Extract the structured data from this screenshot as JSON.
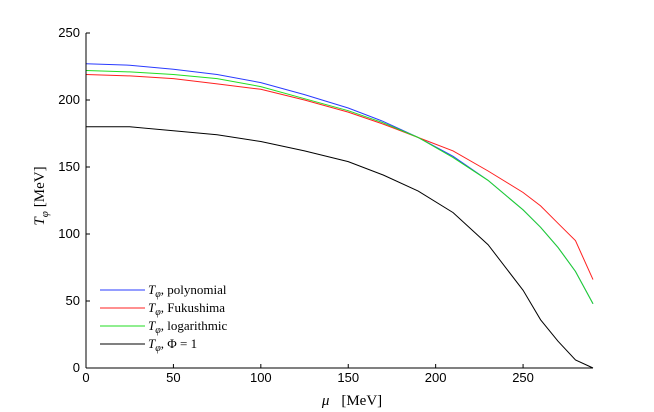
{
  "chart_data": {
    "type": "line",
    "title": "",
    "xlabel": "μ  [MeV]",
    "ylabel": "T_φ [MeV]",
    "xlim": [
      0,
      290
    ],
    "ylim": [
      0,
      250
    ],
    "xticks": [
      0,
      50,
      100,
      150,
      200,
      250
    ],
    "yticks": [
      0,
      50,
      100,
      150,
      200,
      250
    ],
    "grid": false,
    "legend_position": "bottom-left",
    "series": [
      {
        "name": "T_φ, polynomial",
        "color": "#2a3bff",
        "x": [
          0,
          25,
          50,
          75,
          100,
          125,
          150,
          170,
          190,
          210,
          230,
          250,
          260,
          270,
          280,
          290
        ],
        "y": [
          227,
          226,
          223,
          219,
          213,
          204,
          194,
          184,
          172,
          158,
          140,
          118,
          105,
          90,
          72,
          48
        ]
      },
      {
        "name": "T_φ, Fukushima",
        "color": "#ff2020",
        "x": [
          0,
          25,
          50,
          75,
          100,
          125,
          150,
          170,
          190,
          210,
          230,
          250,
          260,
          270,
          280,
          290
        ],
        "y": [
          219,
          218,
          216,
          212,
          208,
          200,
          191,
          182,
          172,
          162,
          147,
          131,
          121,
          108,
          95,
          66
        ]
      },
      {
        "name": "T_φ, logarithmic",
        "color": "#22dd22",
        "x": [
          0,
          25,
          50,
          75,
          100,
          125,
          150,
          170,
          190,
          210,
          230,
          250,
          260,
          270,
          280,
          290
        ],
        "y": [
          222,
          221,
          219,
          216,
          210,
          201,
          192,
          183,
          172,
          157,
          140,
          118,
          105,
          90,
          72,
          48
        ]
      },
      {
        "name": "T_φ, Φ = 1",
        "color": "#000000",
        "x": [
          0,
          25,
          50,
          75,
          100,
          125,
          150,
          170,
          190,
          210,
          230,
          250,
          260,
          270,
          280,
          290
        ],
        "y": [
          180,
          180,
          177,
          174,
          169,
          162,
          154,
          144,
          132,
          116,
          92,
          58,
          36,
          20,
          6,
          0
        ]
      }
    ],
    "legend": [
      {
        "prefix": "T",
        "sub": "φ",
        "text": ", polynomial"
      },
      {
        "prefix": "T",
        "sub": "φ",
        "text": ", Fukushima"
      },
      {
        "prefix": "T",
        "sub": "φ",
        "text": ", logarithmic"
      },
      {
        "prefix": "T",
        "sub": "φ",
        "text": ", Φ  = 1"
      }
    ],
    "axis_labels": {
      "x_symbol": "μ",
      "x_unit": "[MeV]",
      "y_symbol": "T",
      "y_sub": "φ",
      "y_unit": "[MeV]"
    }
  }
}
